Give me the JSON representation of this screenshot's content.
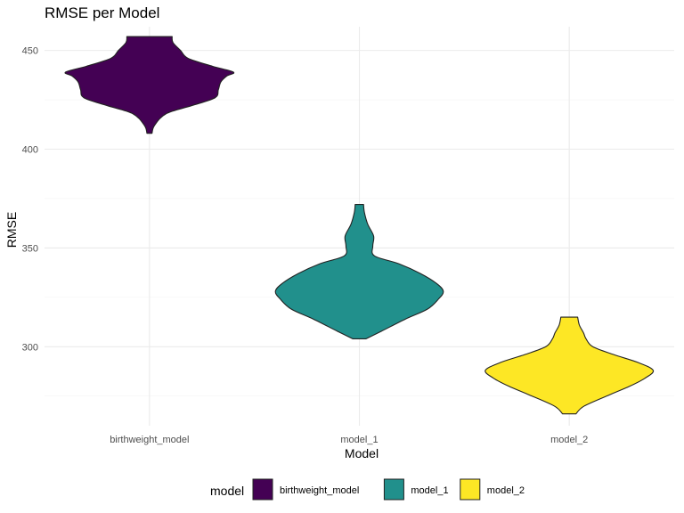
{
  "chart_data": {
    "type": "violin",
    "title": "RMSE per Model",
    "xlabel": "Model",
    "ylabel": "RMSE",
    "ylim": [
      260,
      462
    ],
    "yticks": [
      300,
      350,
      400,
      450
    ],
    "grid": true,
    "categories": [
      "birthweight_model",
      "model_1",
      "model_2"
    ],
    "series": [
      {
        "name": "birthweight_model",
        "color": "#440154",
        "min": 408,
        "max": 457,
        "density": [
          [
            408,
            0.03
          ],
          [
            412,
            0.06
          ],
          [
            418,
            0.2
          ],
          [
            422,
            0.5
          ],
          [
            426,
            0.78
          ],
          [
            430,
            0.82
          ],
          [
            434,
            0.85
          ],
          [
            437,
            0.92
          ],
          [
            439,
            1.0
          ],
          [
            442,
            0.75
          ],
          [
            446,
            0.46
          ],
          [
            450,
            0.37
          ],
          [
            454,
            0.28
          ],
          [
            457,
            0.27
          ]
        ]
      },
      {
        "name": "model_1",
        "color": "#21908C",
        "min": 304,
        "max": 372,
        "density": [
          [
            304,
            0.08
          ],
          [
            308,
            0.27
          ],
          [
            314,
            0.55
          ],
          [
            319,
            0.81
          ],
          [
            324,
            0.94
          ],
          [
            328,
            1.0
          ],
          [
            332,
            0.92
          ],
          [
            337,
            0.73
          ],
          [
            342,
            0.47
          ],
          [
            346,
            0.18
          ],
          [
            351,
            0.16
          ],
          [
            356,
            0.17
          ],
          [
            362,
            0.1
          ],
          [
            368,
            0.06
          ],
          [
            372,
            0.05
          ]
        ]
      },
      {
        "name": "model_2",
        "color": "#FDE725",
        "min": 266,
        "max": 315,
        "density": [
          [
            266,
            0.08
          ],
          [
            270,
            0.18
          ],
          [
            276,
            0.5
          ],
          [
            280,
            0.72
          ],
          [
            284,
            0.9
          ],
          [
            288,
            1.0
          ],
          [
            292,
            0.82
          ],
          [
            296,
            0.53
          ],
          [
            300,
            0.28
          ],
          [
            304,
            0.2
          ],
          [
            307,
            0.17
          ],
          [
            311,
            0.12
          ],
          [
            315,
            0.1
          ]
        ]
      }
    ],
    "legend": {
      "title": "model",
      "position": "bottom",
      "entries": [
        "birthweight_model",
        "model_1",
        "model_2"
      ]
    }
  }
}
